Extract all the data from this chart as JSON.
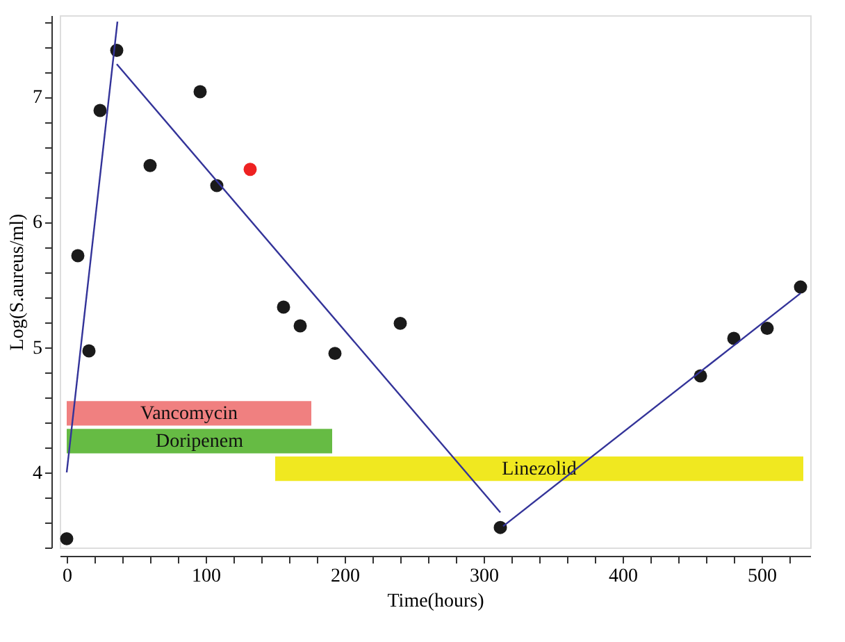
{
  "chart_data": {
    "type": "scatter",
    "xlabel": "Time(hours)",
    "ylabel": "Log(S.aureus/ml)",
    "xlim": [
      -5,
      535
    ],
    "ylim": [
      3.4,
      7.65
    ],
    "xticks": [
      0,
      {
        "value": 20,
        "label": null
      },
      {
        "value": 40,
        "label": null
      },
      {
        "value": 60,
        "label": null
      },
      {
        "value": 80,
        "label": null
      },
      100,
      {
        "value": 120,
        "label": null
      },
      {
        "value": 140,
        "label": null
      },
      {
        "value": 160,
        "label": null
      },
      {
        "value": 180,
        "label": null
      },
      200,
      {
        "value": 220,
        "label": null
      },
      {
        "value": 240,
        "label": null
      },
      {
        "value": 260,
        "label": null
      },
      {
        "value": 280,
        "label": null
      },
      300,
      {
        "value": 320,
        "label": null
      },
      {
        "value": 340,
        "label": null
      },
      {
        "value": 360,
        "label": null
      },
      {
        "value": 380,
        "label": null
      },
      400,
      {
        "value": 420,
        "label": null
      },
      {
        "value": 440,
        "label": null
      },
      {
        "value": 460,
        "label": null
      },
      {
        "value": 480,
        "label": null
      },
      500,
      {
        "value": 520,
        "label": null
      }
    ],
    "yticks": [
      {
        "value": 3.4,
        "label": null
      },
      {
        "value": 3.6,
        "label": null
      },
      {
        "value": 3.8,
        "label": null
      },
      4,
      {
        "value": 4.2,
        "label": null
      },
      {
        "value": 4.4,
        "label": null
      },
      {
        "value": 4.6,
        "label": null
      },
      {
        "value": 4.8,
        "label": null
      },
      5,
      {
        "value": 5.2,
        "label": null
      },
      {
        "value": 5.4,
        "label": null
      },
      {
        "value": 5.6,
        "label": null
      },
      {
        "value": 5.8,
        "label": null
      },
      6,
      {
        "value": 6.2,
        "label": null
      },
      {
        "value": 6.4,
        "label": null
      },
      {
        "value": 6.6,
        "label": null
      },
      {
        "value": 6.8,
        "label": null
      },
      7,
      {
        "value": 7.2,
        "label": null
      },
      {
        "value": 7.4,
        "label": null
      },
      {
        "value": 7.6,
        "label": null
      }
    ],
    "grid": false,
    "series": [
      {
        "type": "scatter",
        "marker": "circle",
        "x": [
          0,
          8,
          16,
          24,
          36,
          60,
          96,
          108,
          132,
          156,
          168,
          193,
          240,
          312,
          456,
          480,
          504,
          528
        ],
        "values": [
          3.47,
          5.73,
          4.97,
          6.89,
          7.37,
          6.45,
          7.04,
          6.29,
          6.42,
          5.32,
          5.17,
          4.95,
          5.19,
          3.56,
          4.77,
          5.07,
          5.15,
          5.48
        ],
        "colors": [
          "#1a1a1a",
          "#1a1a1a",
          "#1a1a1a",
          "#1a1a1a",
          "#1a1a1a",
          "#1a1a1a",
          "#1a1a1a",
          "#1a1a1a",
          "#ee2222",
          "#1a1a1a",
          "#1a1a1a",
          "#1a1a1a",
          "#1a1a1a",
          "#1a1a1a",
          "#1a1a1a",
          "#1a1a1a",
          "#1a1a1a",
          "#1a1a1a"
        ]
      },
      {
        "type": "line",
        "marker": "none",
        "line_style": "solid",
        "color": "#333399",
        "x": [
          0,
          36.5
        ],
        "values": [
          4.0,
          7.6
        ]
      },
      {
        "type": "line",
        "marker": "none",
        "line_style": "solid",
        "color": "#333399",
        "x": [
          36,
          312
        ],
        "values": [
          7.26,
          3.68
        ]
      },
      {
        "type": "line",
        "marker": "none",
        "line_style": "solid",
        "color": "#333399",
        "x": [
          314,
          528
        ],
        "values": [
          3.57,
          5.43
        ]
      }
    ],
    "bands": [
      {
        "axis": "x",
        "from": 0,
        "to": 176,
        "label": "Vancomycin",
        "color": "#f08080"
      },
      {
        "axis": "x",
        "from": 0,
        "to": 191,
        "label": "Doripenem",
        "color": "#66bb44"
      },
      {
        "axis": "x",
        "from": 150,
        "to": 530,
        "label": "Linezolid",
        "color": "#f0e820"
      }
    ]
  }
}
